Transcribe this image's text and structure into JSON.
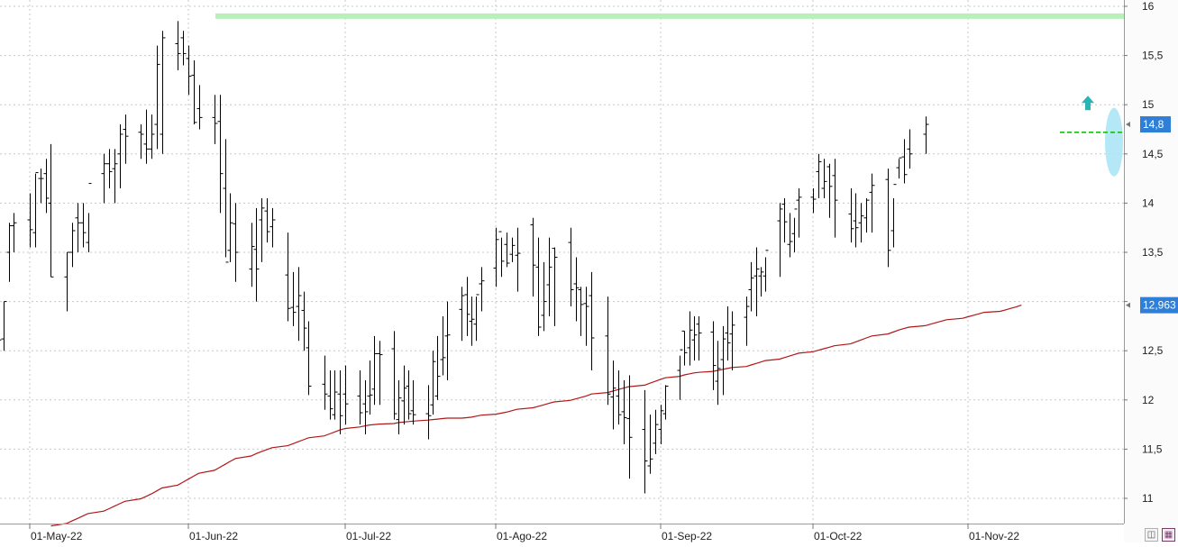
{
  "chart_data": {
    "type": "ohlc",
    "title": "",
    "xlabel": "",
    "ylabel": "",
    "ylim": [
      10.75,
      16.05
    ],
    "y_ticks": [
      11,
      11.5,
      12,
      12.5,
      13,
      13.5,
      14,
      14.5,
      15,
      15.5,
      16
    ],
    "y_tick_labels": [
      "11",
      "11,5",
      "12",
      "12,5",
      "13",
      "13,5",
      "14",
      "14,5",
      "15",
      "15,5",
      "16"
    ],
    "x_tick_labels": [
      "01-May-22",
      "01-Jun-22",
      "01-Jul-22",
      "01-Ago-22",
      "01-Sep-22",
      "01-Oct-22",
      "01-Nov-22"
    ],
    "x_tick_dates": [
      "2022-05-02",
      "2022-06-01",
      "2022-07-01",
      "2022-08-01",
      "2022-09-01",
      "2022-10-03",
      "2022-11-01"
    ],
    "grid": true,
    "colors": {
      "bars": "#000000",
      "moving_average": "#b01818",
      "resistance": "#b8f0b8",
      "breakout": "#1fb81f",
      "highlight": "#a8e4f4",
      "arrow": "#2ab5b5",
      "price_label": "#2f7fd6"
    },
    "price_labels": [
      "14,8",
      "12,963"
    ],
    "resistance_level": 15.9,
    "breakout_level": 14.72,
    "series": [
      {
        "type": "ohlc",
        "start_date": "2022-04-25",
        "opens": [
          12.52,
          12.35,
          12.62,
          13.5,
          13.77,
          13.83,
          13.7,
          14.25,
          14.3,
          14.0,
          13.25,
          13.5,
          13.85,
          13.8,
          13.6,
          14.3,
          14.4,
          14.35,
          14.5,
          14.75,
          14.72,
          14.6,
          14.55,
          14.8,
          14.7,
          15.62,
          15.68,
          15.47,
          15.3,
          14.96,
          14.87,
          14.83,
          14.15,
          13.52,
          13.79,
          13.33,
          13.53,
          13.83,
          13.92,
          13.76,
          13.27,
          12.94,
          12.95,
          12.91,
          12.53,
          12.16,
          12.04,
          11.85,
          12.06,
          12.06,
          12.04,
          11.96,
          12.04,
          12.11,
          12.47,
          12.52,
          11.8,
          11.99,
          12.14,
          11.89,
          11.86,
          11.95,
          12.04,
          12.41,
          12.65,
          12.92,
          13.07,
          12.8,
          12.77,
          13.18,
          13.34,
          13.71,
          13.58,
          13.48,
          13.47,
          13.78,
          13.35,
          12.86,
          13.17,
          13.54,
          13.6,
          13.18,
          13.12,
          12.98,
          13.06,
          12.65,
          12.03,
          12.04,
          11.88,
          11.81,
          11.7,
          11.33,
          11.56,
          11.7,
          11.86,
          12.3,
          12.7,
          12.53,
          12.61,
          12.77,
          12.69,
          12.19,
          12.41,
          12.68,
          12.67,
          12.84,
          13.12,
          13.26,
          13.26,
          13.26,
          13.82,
          13.99,
          13.58,
          13.69,
          14.03,
          14.06,
          14.32,
          14.15,
          14.37,
          14.28,
          13.89,
          13.82,
          13.8,
          13.85,
          14.11,
          14.24,
          13.72,
          14.36,
          14.47,
          14.55,
          14.7
        ],
        "highs": [
          12.75,
          12.5,
          13.0,
          13.8,
          13.9,
          14.1,
          14.3,
          14.35,
          14.45,
          14.6,
          13.5,
          13.8,
          14.0,
          14.0,
          13.9,
          14.5,
          14.55,
          14.55,
          14.8,
          14.9,
          14.8,
          14.95,
          14.9,
          15.6,
          15.75,
          15.85,
          15.75,
          15.6,
          15.45,
          15.2,
          15.1,
          15.1,
          14.65,
          14.1,
          14.0,
          13.8,
          13.95,
          14.05,
          14.05,
          13.95,
          13.7,
          13.3,
          13.35,
          13.1,
          12.8,
          12.45,
          12.3,
          12.3,
          12.3,
          12.35,
          12.3,
          12.2,
          12.4,
          12.65,
          12.6,
          12.7,
          12.2,
          12.35,
          12.3,
          12.2,
          12.15,
          12.5,
          12.65,
          12.85,
          13.0,
          13.15,
          13.25,
          13.05,
          13.05,
          13.35,
          13.75,
          13.65,
          13.7,
          13.65,
          13.75,
          13.85,
          13.65,
          13.4,
          13.65,
          13.55,
          13.75,
          13.45,
          13.15,
          13.15,
          13.3,
          13.05,
          12.4,
          12.3,
          12.2,
          12.25,
          12.1,
          11.85,
          11.9,
          11.95,
          12.15,
          12.45,
          12.7,
          12.9,
          12.85,
          12.85,
          12.8,
          12.6,
          12.75,
          12.95,
          12.9,
          13.05,
          13.4,
          13.55,
          13.35,
          13.45,
          14.0,
          14.05,
          13.9,
          13.85,
          14.15,
          14.15,
          14.5,
          14.45,
          14.4,
          14.45,
          14.15,
          14.1,
          14.0,
          14.05,
          14.3,
          14.35,
          14.05,
          14.45,
          14.65,
          14.75,
          14.88
        ],
        "lows": [
          12.3,
          12.2,
          12.5,
          13.2,
          13.5,
          13.55,
          13.55,
          14.0,
          13.9,
          13.25,
          12.9,
          13.35,
          13.5,
          13.55,
          13.5,
          14.0,
          14.15,
          14.0,
          14.15,
          14.4,
          14.45,
          14.4,
          14.45,
          14.55,
          14.5,
          15.35,
          15.4,
          15.1,
          14.8,
          14.75,
          14.6,
          13.9,
          13.45,
          13.4,
          13.2,
          13.15,
          13.0,
          13.4,
          13.6,
          13.55,
          12.8,
          12.75,
          12.6,
          12.5,
          12.05,
          11.9,
          11.8,
          11.8,
          11.65,
          11.75,
          11.75,
          11.65,
          11.85,
          11.95,
          11.95,
          11.8,
          11.65,
          11.75,
          11.8,
          11.75,
          11.6,
          11.85,
          12.0,
          12.25,
          12.2,
          12.6,
          12.65,
          12.55,
          12.6,
          12.9,
          13.15,
          13.25,
          13.35,
          13.4,
          13.1,
          13.05,
          12.65,
          12.7,
          12.85,
          12.75,
          12.95,
          12.8,
          12.65,
          12.55,
          12.3,
          11.95,
          11.7,
          11.75,
          11.55,
          11.2,
          11.05,
          11.25,
          11.45,
          11.55,
          11.8,
          12.0,
          12.35,
          12.35,
          12.4,
          12.4,
          12.1,
          11.95,
          12.05,
          12.4,
          12.3,
          12.55,
          12.9,
          12.85,
          13.05,
          13.1,
          13.25,
          13.6,
          13.45,
          13.5,
          13.65,
          13.9,
          14.05,
          14.05,
          13.85,
          13.65,
          13.6,
          13.55,
          13.6,
          13.7,
          13.7,
          13.35,
          13.55,
          14.25,
          14.2,
          14.35,
          14.5
        ],
        "closes": [
          12.48,
          12.61,
          13.0,
          13.77,
          13.8,
          13.73,
          14.31,
          14.25,
          14.05,
          13.25,
          13.5,
          13.72,
          13.8,
          13.7,
          14.2,
          14.4,
          14.32,
          14.4,
          14.7,
          14.68,
          14.7,
          14.55,
          14.7,
          15.41,
          15.68,
          15.52,
          15.52,
          15.29,
          14.82,
          14.87,
          14.81,
          14.3,
          13.4,
          13.8,
          13.5,
          13.56,
          13.33,
          13.95,
          13.71,
          13.83,
          12.93,
          12.89,
          13.06,
          12.73,
          12.14,
          12.06,
          11.91,
          12.08,
          11.84,
          11.96,
          11.87,
          11.88,
          12.05,
          12.47,
          12.46,
          11.86,
          12.02,
          12.12,
          11.86,
          11.85,
          11.84,
          12.39,
          12.24,
          12.43,
          12.66,
          13.06,
          12.87,
          12.82,
          13.07,
          13.21,
          13.63,
          13.41,
          13.39,
          13.57,
          13.49,
          13.37,
          12.74,
          13.0,
          13.35,
          13.45,
          13.12,
          13.14,
          12.97,
          12.95,
          12.63,
          12.06,
          12.12,
          11.85,
          11.82,
          11.62,
          11.38,
          11.4,
          11.75,
          11.89,
          12.14,
          12.51,
          12.48,
          12.71,
          12.66,
          12.68,
          12.35,
          12.32,
          12.62,
          12.58,
          12.76,
          12.95,
          13.24,
          13.33,
          13.3,
          13.52,
          13.94,
          13.81,
          13.61,
          13.94,
          14.06,
          14.04,
          14.42,
          14.22,
          14.17,
          14.03,
          13.74,
          13.75,
          13.87,
          14.03,
          14.18,
          13.52,
          14.19,
          14.46,
          14.29,
          14.5,
          14.8
        ]
      },
      {
        "name": "",
        "type": "line",
        "start_date": "2022-05-06",
        "values": [
          10.72,
          10.745,
          10.77,
          10.795,
          10.82,
          10.845,
          10.87,
          10.895,
          10.92,
          10.945,
          10.97,
          10.995,
          11.02,
          11.045,
          11.075,
          11.105,
          11.135,
          11.165,
          11.195,
          11.225,
          11.255,
          11.285,
          11.315,
          11.345,
          11.375,
          11.405,
          11.43,
          11.455,
          11.475,
          11.495,
          11.515,
          11.535,
          11.555,
          11.575,
          11.595,
          11.615,
          11.635,
          11.655,
          11.675,
          11.695,
          11.71,
          11.725,
          11.735,
          11.745,
          11.75,
          11.755,
          11.76,
          11.77,
          11.775,
          11.78,
          11.785,
          11.795,
          11.8,
          11.805,
          11.81,
          11.815,
          11.815,
          11.82,
          11.825,
          11.835,
          11.845,
          11.855,
          11.865,
          11.875,
          11.89,
          11.905,
          11.92,
          11.935,
          11.95,
          11.965,
          11.98,
          11.995,
          12.01,
          12.025,
          12.04,
          12.06,
          12.075,
          12.09,
          12.105,
          12.12,
          12.135,
          12.15,
          12.17,
          12.19,
          12.21,
          12.225,
          12.24,
          12.255,
          12.265,
          12.275,
          12.28,
          12.29,
          12.3,
          12.31,
          12.32,
          12.33,
          12.34,
          12.355,
          12.37,
          12.385,
          12.4,
          12.415,
          12.43,
          12.445,
          12.46,
          12.475,
          12.49,
          12.505,
          12.52,
          12.535,
          12.55,
          12.57,
          12.59,
          12.61,
          12.63,
          12.65,
          12.67,
          12.69,
          12.71,
          12.725,
          12.74,
          12.755,
          12.77,
          12.785,
          12.8,
          12.815,
          12.83,
          12.845,
          12.86,
          12.875,
          12.89,
          12.9,
          12.915,
          12.93,
          12.945,
          12.963
        ]
      }
    ]
  }
}
